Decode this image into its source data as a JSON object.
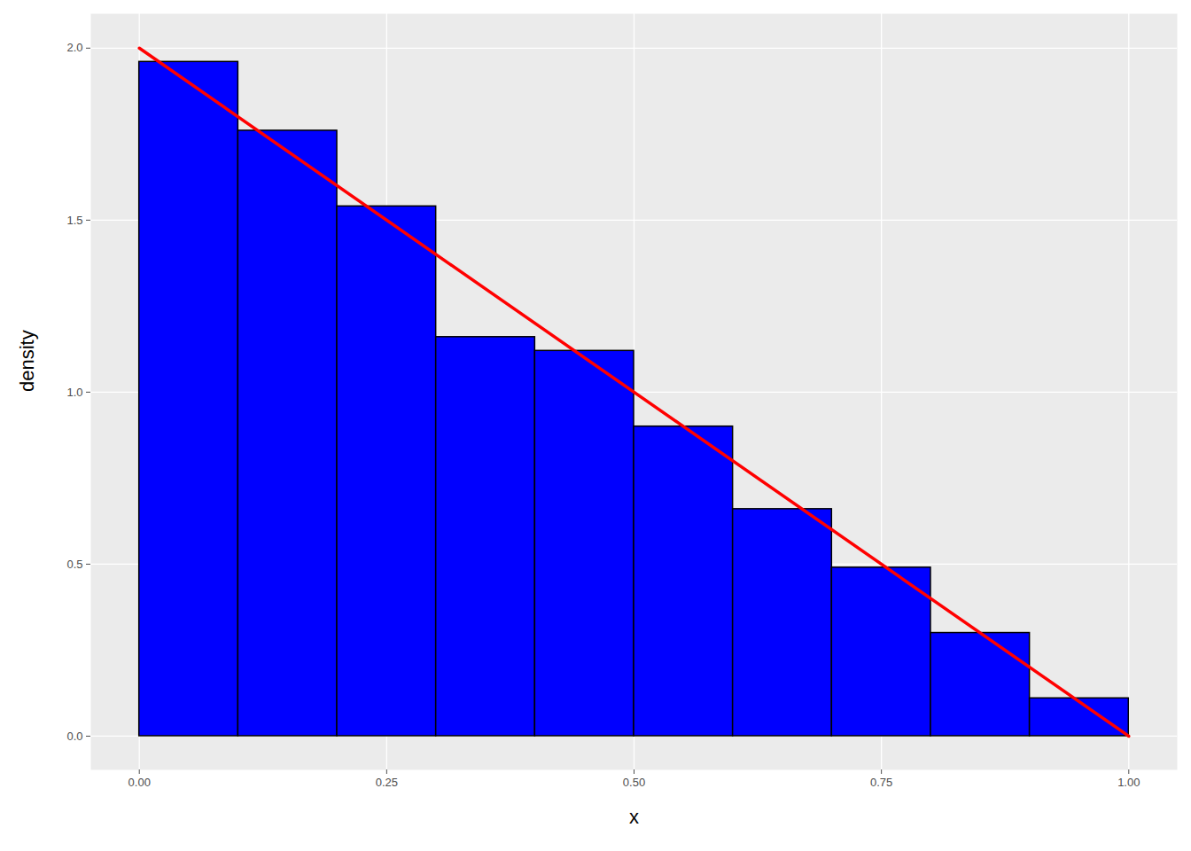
{
  "chart_data": {
    "type": "histogram",
    "x_label": "x",
    "y_label": "density",
    "bins": [
      0,
      0.1,
      0.2,
      0.3,
      0.4,
      0.5,
      0.6,
      0.7,
      0.8,
      0.9,
      1.0
    ],
    "values": [
      1.96,
      1.76,
      1.54,
      1.16,
      1.12,
      0.9,
      0.66,
      0.49,
      0.3,
      0.11
    ],
    "color": "#0000ff",
    "line": {
      "type": "line",
      "x": [
        0,
        1
      ],
      "values": [
        2,
        0
      ],
      "color": "#ff0000"
    },
    "xlim": [
      -0.049,
      1.049
    ],
    "ylim": [
      -0.098,
      2.1
    ],
    "xticks": [
      {
        "value": 0,
        "label": "0.00"
      },
      {
        "value": 0.25,
        "label": "0.25"
      },
      {
        "value": 0.5,
        "label": "0.50"
      },
      {
        "value": 0.75,
        "label": "0.75"
      },
      {
        "value": 1,
        "label": "1.00"
      }
    ],
    "yticks": [
      {
        "value": 0,
        "label": "0.0"
      },
      {
        "value": 0.5,
        "label": "0.5"
      },
      {
        "value": 1,
        "label": "1.0"
      },
      {
        "value": 1.5,
        "label": "1.5"
      },
      {
        "value": 2,
        "label": "2.0"
      }
    ],
    "grid": true
  }
}
